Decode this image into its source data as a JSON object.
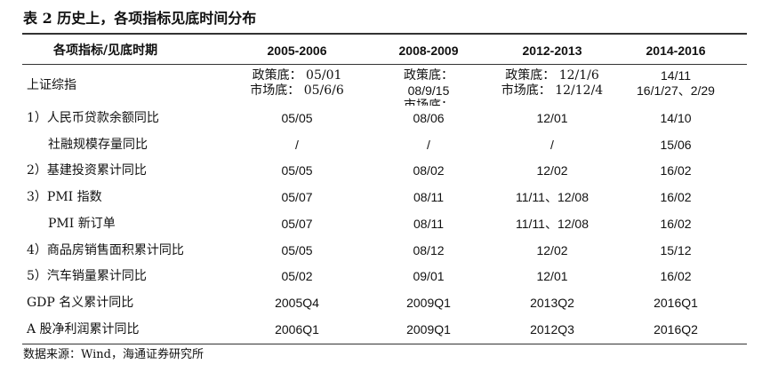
{
  "title": "表 2 历史上，各项指标见底时间分布",
  "table": {
    "header": [
      "各项指标/见底时期",
      "2005-2006",
      "2008-2009",
      "2012-2013",
      "2014-2016"
    ],
    "rows": [
      [
        "上证综指",
        [
          "政策底：  05/01",
          "市场底：  05/6/6"
        ],
        [
          "政策底：",
          "08/9/15",
          "市场底："
        ],
        [
          "政策底：  12/1/6",
          "市场底：  12/12/4"
        ],
        [
          "14/11",
          "16/1/27、2/29"
        ]
      ],
      [
        "1）人民币贷款余额同比",
        "05/05",
        "08/06",
        "12/01",
        "14/10"
      ],
      [
        "社融规模存量同比",
        "/",
        "/",
        "/",
        "15/06"
      ],
      [
        "2）基建投资累计同比",
        "05/05",
        "08/02",
        "12/02",
        "16/02"
      ],
      [
        "3）PMI 指数",
        "05/07",
        "08/11",
        "11/11、12/08",
        "16/02"
      ],
      [
        "PMI 新订单",
        "05/07",
        "08/11",
        "11/11、12/08",
        "16/02"
      ],
      [
        "4）商品房销售面积累计同比",
        "05/05",
        "08/12",
        "12/02",
        "15/12"
      ],
      [
        "5）汽车销量累计同比",
        "05/02",
        "09/01",
        "12/01",
        "16/02"
      ],
      [
        "GDP 名义累计同比",
        "2005Q4",
        "2009Q1",
        "2013Q2",
        "2016Q1"
      ],
      [
        "A 股净利润累计同比",
        "2006Q1",
        "2009Q1",
        "2012Q3",
        "2016Q2"
      ]
    ]
  },
  "source": "数据来源：Wind，海通证券研究所"
}
